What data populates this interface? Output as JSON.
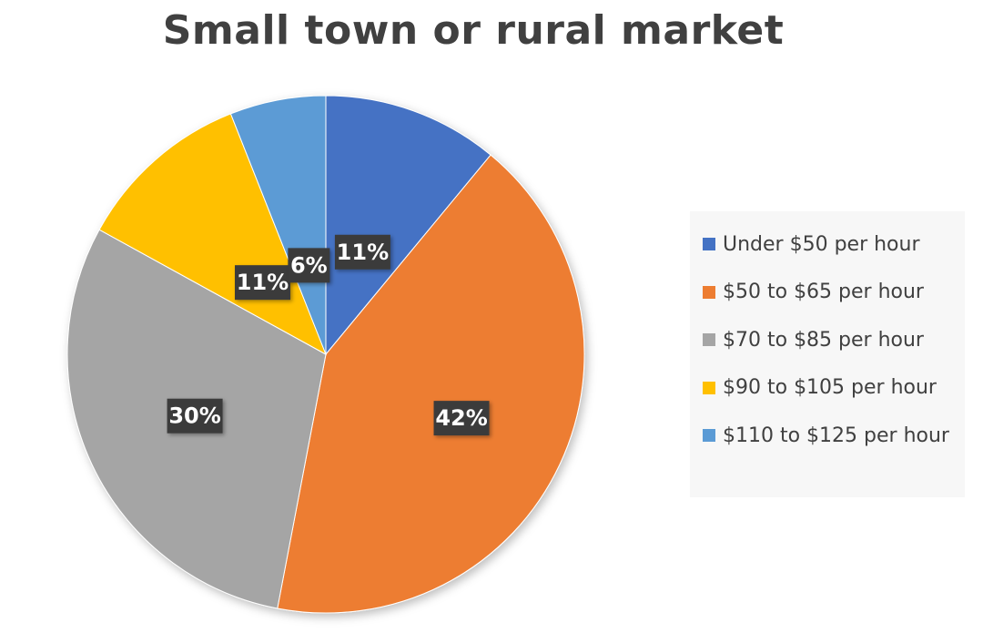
{
  "chart_data": {
    "type": "pie",
    "title": "Small town or rural market",
    "categories": [
      "Under $50 per hour",
      "$50 to $65 per hour",
      "$70 to $85 per hour",
      "$90 to $105 per hour",
      "$110 to $125 per hour"
    ],
    "values": [
      11,
      42,
      30,
      11,
      6
    ],
    "data_labels": [
      "11%",
      "42%",
      "30%",
      "11%",
      "6%"
    ],
    "colors": [
      "#4472C4",
      "#ED7D31",
      "#A5A5A5",
      "#FFC000",
      "#5B9BD5"
    ],
    "start_angle_deg": 0,
    "direction": "clockwise",
    "legend_position": "right"
  }
}
